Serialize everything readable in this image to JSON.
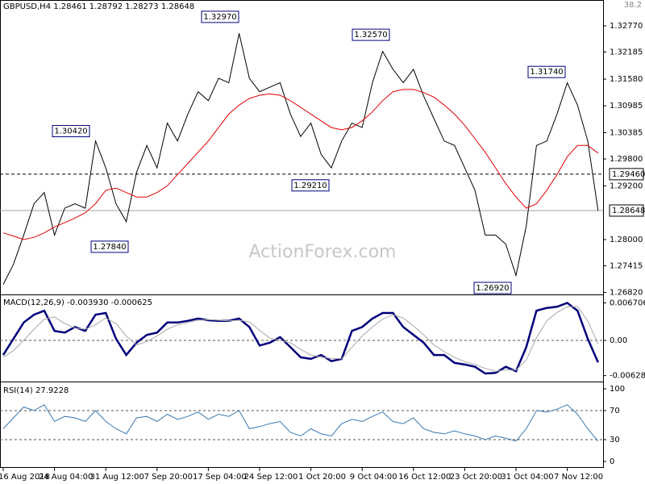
{
  "chart_data": [
    {
      "type": "line",
      "title": "GBPUSD,H4 1.28461 1.28792 1.28273 1.28648",
      "watermark": "ActionForex.com",
      "corner_text": "38.2",
      "ylim": [
        1.26812,
        1.33202
      ],
      "yticks": [
        {
          "value": 1.3277,
          "label": "1.32770"
        },
        1.32185,
        {
          "value": 1.3158,
          "label": "1.31580"
        },
        1.30985,
        1.30385,
        {
          "value": 1.298,
          "label": "1.29800"
        },
        {
          "value": 1.292,
          "label": "1.29200"
        },
        {
          "value": 1.28,
          "label": "1.28000"
        },
        1.27415,
        {
          "value": 1.2682,
          "label": "1.26820"
        }
      ],
      "series": [
        {
          "color": "#000000",
          "values": [
            1.27,
            1.2745,
            1.281,
            1.288,
            1.2905,
            1.281,
            1.287,
            1.288,
            1.287,
            1.302,
            1.296,
            1.288,
            1.284,
            1.295,
            1.301,
            1.296,
            1.306,
            1.302,
            1.308,
            1.313,
            1.311,
            1.316,
            1.315,
            1.326,
            1.316,
            1.313,
            1.314,
            1.315,
            1.308,
            1.303,
            1.306,
            1.299,
            1.296,
            1.302,
            1.306,
            1.305,
            1.315,
            1.322,
            1.318,
            1.315,
            1.318,
            1.312,
            1.307,
            1.302,
            1.301,
            1.296,
            1.291,
            1.281,
            1.281,
            1.279,
            1.272,
            1.283,
            1.301,
            1.302,
            1.308,
            1.315,
            1.31,
            1.302,
            1.28648
          ]
        },
        {
          "color": "#e00000",
          "values": [
            1.2815,
            1.2808,
            1.28,
            1.2805,
            1.2815,
            1.2828,
            1.2838,
            1.2848,
            1.286,
            1.288,
            1.291,
            1.2915,
            1.2905,
            1.2895,
            1.2895,
            1.2905,
            1.292,
            1.2945,
            1.297,
            1.2995,
            1.302,
            1.305,
            1.308,
            1.31,
            1.3115,
            1.3122,
            1.3125,
            1.3122,
            1.311,
            1.3095,
            1.308,
            1.3065,
            1.305,
            1.3045,
            1.305,
            1.3065,
            1.3085,
            1.311,
            1.313,
            1.3135,
            1.3135,
            1.3128,
            1.3118,
            1.31,
            1.308,
            1.3055,
            1.3025,
            1.2995,
            1.296,
            1.2925,
            1.2895,
            1.287,
            1.288,
            1.291,
            1.2945,
            1.2985,
            1.301,
            1.301,
            1.2993
          ]
        }
      ],
      "annotations": [
        {
          "value": 1.3297,
          "label": "1.32970"
        },
        {
          "value": 1.3042,
          "label": "1.30420"
        },
        {
          "value": 1.2784,
          "label": "1.27840"
        },
        {
          "value": 1.2921,
          "label": "1.29210"
        },
        {
          "value": 1.3257,
          "label": "1.32570"
        },
        {
          "value": 1.3174,
          "label": "1.31740"
        },
        {
          "value": 1.2692,
          "label": "1.26920"
        }
      ],
      "levels": [
        {
          "value": 1.2946,
          "label": "1.29460",
          "style": "dashed",
          "color": "#000000"
        },
        {
          "value": 1.28648,
          "label": "1.28648",
          "style": "solid",
          "color": "#a0a0a0"
        }
      ]
    },
    {
      "type": "line",
      "title": "MACD(12,26,9) -0.003930 -0.000625",
      "ylim": [
        -0.00734,
        0.00821
      ],
      "yticks": [
        0.006706,
        {
          "value": 0,
          "label": "0.00"
        },
        -0.00628
      ],
      "series": [
        {
          "color": "#00007a",
          "width": 2.5,
          "values": [
            -0.0026,
            0.0003,
            0.0032,
            0.0046,
            0.0053,
            0.0017,
            0.0014,
            0.0024,
            0.0017,
            0.0046,
            0.0049,
            0.0003,
            -0.0026,
            -0.0004,
            0.001,
            0.0014,
            0.0032,
            0.0032,
            0.0035,
            0.0039,
            0.0036,
            0.0035,
            0.0035,
            0.0039,
            0.0024,
            -0.0009,
            -0.0004,
            0.0006,
            -0.0012,
            -0.003,
            -0.0033,
            -0.0026,
            -0.0037,
            -0.0033,
            0.0017,
            0.0024,
            0.0039,
            0.0049,
            0.0049,
            0.0024,
            0.001,
            -0.0004,
            -0.0026,
            -0.0026,
            -0.004,
            -0.0043,
            -0.0047,
            -0.0059,
            -0.0058,
            -0.0047,
            -0.0055,
            -0.0012,
            0.0053,
            0.0058,
            0.006,
            0.0067,
            0.0053,
            0.0003,
            -0.00393
          ]
        },
        {
          "color": "#a8a8a8",
          "width": 1,
          "values": [
            -0.003,
            -0.0018,
            0,
            0.002,
            0.0038,
            0.0042,
            0.003,
            0.0022,
            0.002,
            0.0028,
            0.004,
            0.003,
            0.0008,
            -0.0008,
            -0.0002,
            0.0008,
            0.002,
            0.0028,
            0.0032,
            0.0036,
            0.0037,
            0.0036,
            0.0035,
            0.0036,
            0.0033,
            0.0018,
            0.0004,
            0,
            -0.0004,
            -0.0016,
            -0.0026,
            -0.003,
            -0.0032,
            -0.0033,
            -0.0012,
            0.0008,
            0.0024,
            0.0038,
            0.0046,
            0.004,
            0.0026,
            0.001,
            -0.0008,
            -0.002,
            -0.003,
            -0.0038,
            -0.0043,
            -0.005,
            -0.0055,
            -0.0053,
            -0.0053,
            -0.0035,
            0.0005,
            0.0035,
            0.005,
            0.006,
            0.006,
            0.0035,
            -0.000625
          ]
        }
      ]
    },
    {
      "type": "line",
      "title": "RSI(14) 27.9228",
      "ylim": [
        -8.9,
        107.8
      ],
      "yticks": [
        100,
        70,
        30,
        0
      ],
      "categories": [
        "16 Aug 2018",
        null,
        null,
        null,
        null,
        "24 Aug 04:00",
        null,
        null,
        null,
        null,
        "31 Aug 12:00",
        null,
        null,
        null,
        null,
        "7 Sep 20:00",
        null,
        null,
        null,
        null,
        "17 Sep 04:00",
        null,
        null,
        null,
        null,
        "24 Sep 12:00",
        null,
        null,
        null,
        null,
        "1 Oct 20:00",
        null,
        null,
        null,
        null,
        "9 Oct 04:00",
        null,
        null,
        null,
        null,
        "16 Oct 12:00",
        null,
        null,
        null,
        null,
        "23 Oct 20:00",
        null,
        null,
        null,
        null,
        "31 Oct 04:00",
        null,
        null,
        null,
        null,
        "7 Nov 12:00",
        null,
        null,
        null
      ],
      "series": [
        {
          "color": "#3a78b0",
          "width": 1,
          "values": [
            45,
            60,
            75,
            70,
            78,
            55,
            62,
            60,
            55,
            70,
            55,
            45,
            38,
            60,
            62,
            55,
            65,
            58,
            62,
            68,
            58,
            65,
            62,
            70,
            45,
            48,
            52,
            55,
            40,
            35,
            45,
            38,
            35,
            52,
            58,
            55,
            62,
            68,
            55,
            52,
            60,
            45,
            40,
            38,
            42,
            38,
            35,
            30,
            35,
            32,
            28,
            45,
            70,
            68,
            72,
            78,
            65,
            45,
            27.9228
          ]
        }
      ]
    }
  ]
}
